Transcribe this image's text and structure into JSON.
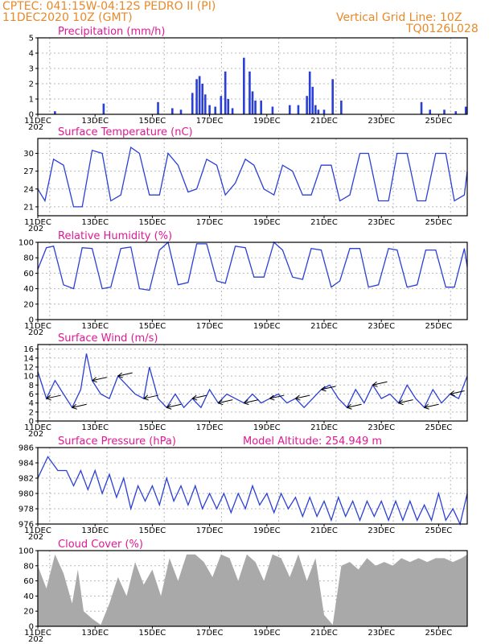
{
  "header": {
    "station": "CPTEC:   041:15W-04:12S   PEDRO II (PI)",
    "date": "11DEC2020 10Z (GMT)",
    "grid_note": "Vertical Grid Line: 10Z",
    "code": "TQ0126L028"
  },
  "colors": {
    "header": "#e8892a",
    "title": "#e01893",
    "line": "#2a3fd6",
    "cloud": "#a9a9a9",
    "arrow": "#000000"
  },
  "x_axis": {
    "start_day": 11,
    "end_day": 26,
    "tick_labels": [
      "11DEC",
      "13DEC",
      "15DEC",
      "17DEC",
      "19DEC",
      "21DEC",
      "23DEC",
      "25DEC"
    ],
    "tick_days": [
      11,
      13,
      15,
      17,
      19,
      21,
      23,
      25
    ],
    "year_fragment": "202"
  },
  "panels": {
    "precip": {
      "title": "Precipitation (mm/h)",
      "ylim": [
        0,
        5
      ],
      "yticks": [
        0,
        1,
        2,
        3,
        4,
        5
      ]
    },
    "temp": {
      "title": "Surface Temperature (nC)",
      "ylim": [
        19.5,
        32.5
      ],
      "yticks": [
        21,
        24,
        27,
        30
      ]
    },
    "rh": {
      "title": "Relative Humidity (%)",
      "ylim": [
        0,
        100
      ],
      "yticks": [
        0,
        20,
        40,
        60,
        80,
        100
      ]
    },
    "wind": {
      "title": "Surface Wind (m/s)",
      "ylim": [
        0,
        17
      ],
      "yticks": [
        0,
        2,
        4,
        6,
        8,
        10,
        12,
        14,
        16
      ]
    },
    "pressure": {
      "title": "Surface Pressure (hPa)",
      "altitude": "Model Altitude: 254.949 m",
      "ylim": [
        976,
        986
      ],
      "yticks": [
        976,
        978,
        980,
        982,
        984,
        986
      ]
    },
    "cloud": {
      "title": "Cloud Cover (%)",
      "ylim": [
        0,
        100
      ],
      "yticks": [
        0,
        20,
        40,
        60,
        80,
        100
      ]
    }
  },
  "chart_data": [
    {
      "type": "bar",
      "title": "Precipitation (mm/h)",
      "ylim": [
        0,
        5
      ],
      "x_unit": "days from 11DEC 00Z",
      "x": [
        0.6,
        2.3,
        4.2,
        4.7,
        5.0,
        5.4,
        5.55,
        5.65,
        5.75,
        5.85,
        6.0,
        6.2,
        6.4,
        6.55,
        6.65,
        6.8,
        7.2,
        7.4,
        7.5,
        7.6,
        7.8,
        8.2,
        8.8,
        9.1,
        9.4,
        9.5,
        9.6,
        9.7,
        9.8,
        10.0,
        10.3,
        10.6,
        13.4,
        13.7,
        14.2,
        14.6,
        14.95
      ],
      "values": [
        0.2,
        0.7,
        0.8,
        0.4,
        0.3,
        1.4,
        2.3,
        2.5,
        2.0,
        1.3,
        0.6,
        0.5,
        1.2,
        2.8,
        1.0,
        0.4,
        3.7,
        2.8,
        1.5,
        0.9,
        0.9,
        0.5,
        0.6,
        0.6,
        1.2,
        2.8,
        1.8,
        0.6,
        0.3,
        0.3,
        2.3,
        0.9,
        0.8,
        0.3,
        0.3,
        0.2,
        0.5
      ]
    },
    {
      "type": "line",
      "title": "Surface Temperature (nC)",
      "ylim": [
        19.5,
        32.5
      ],
      "x_unit": "days from 11DEC 00Z",
      "x": [
        0,
        0.25,
        0.55,
        0.9,
        1.25,
        1.55,
        1.9,
        2.25,
        2.55,
        2.9,
        3.25,
        3.55,
        3.9,
        4.25,
        4.55,
        4.9,
        5.25,
        5.55,
        5.9,
        6.25,
        6.55,
        6.9,
        7.25,
        7.55,
        7.9,
        8.25,
        8.55,
        8.9,
        9.25,
        9.55,
        9.9,
        10.25,
        10.55,
        10.9,
        11.25,
        11.55,
        11.9,
        12.25,
        12.55,
        12.9,
        13.25,
        13.55,
        13.9,
        14.25,
        14.55,
        14.9,
        15
      ],
      "values": [
        24,
        22,
        29,
        28,
        21,
        21,
        30.5,
        30,
        22,
        23,
        31,
        30,
        23,
        23,
        30,
        28,
        23.5,
        24,
        29,
        28,
        23,
        25,
        29,
        28,
        24,
        23,
        28,
        27,
        23,
        23,
        28,
        28,
        22,
        23,
        30,
        30,
        22,
        22,
        30,
        30,
        22,
        22,
        30,
        30,
        22,
        23,
        27
      ]
    },
    {
      "type": "line",
      "title": "Relative Humidity (%)",
      "ylim": [
        0,
        100
      ],
      "x_unit": "days from 11DEC 00Z",
      "x": [
        0,
        0.3,
        0.55,
        0.9,
        1.25,
        1.55,
        1.9,
        2.25,
        2.55,
        2.9,
        3.25,
        3.55,
        3.9,
        4.25,
        4.55,
        4.9,
        5.25,
        5.55,
        5.9,
        6.25,
        6.55,
        6.9,
        7.25,
        7.55,
        7.9,
        8.25,
        8.55,
        8.9,
        9.25,
        9.55,
        9.9,
        10.25,
        10.55,
        10.9,
        11.25,
        11.55,
        11.9,
        12.25,
        12.55,
        12.9,
        13.25,
        13.55,
        13.9,
        14.25,
        14.55,
        14.9,
        15
      ],
      "values": [
        65,
        93,
        95,
        45,
        40,
        93,
        92,
        40,
        42,
        92,
        94,
        40,
        38,
        90,
        100,
        45,
        48,
        98,
        98,
        50,
        47,
        95,
        93,
        55,
        55,
        100,
        90,
        55,
        52,
        92,
        90,
        42,
        50,
        92,
        92,
        42,
        45,
        92,
        90,
        42,
        45,
        90,
        90,
        42,
        42,
        92,
        68
      ]
    },
    {
      "type": "line",
      "title": "Surface Wind (m/s)",
      "ylim": [
        0,
        17
      ],
      "x_unit": "days from 11DEC 00Z",
      "x": [
        0,
        0.3,
        0.6,
        0.9,
        1.2,
        1.5,
        1.7,
        1.9,
        2.2,
        2.5,
        2.8,
        3.1,
        3.4,
        3.7,
        3.9,
        4.2,
        4.5,
        4.8,
        5.1,
        5.4,
        5.7,
        6.0,
        6.3,
        6.6,
        6.9,
        7.2,
        7.5,
        7.8,
        8.1,
        8.4,
        8.7,
        9.0,
        9.3,
        9.6,
        9.9,
        10.2,
        10.5,
        10.8,
        11.1,
        11.4,
        11.7,
        12.0,
        12.3,
        12.6,
        12.9,
        13.2,
        13.5,
        13.8,
        14.1,
        14.4,
        14.7,
        15
      ],
      "values": [
        11,
        5,
        9,
        6,
        3,
        7,
        15,
        9,
        6,
        5,
        10,
        8,
        6,
        5,
        12,
        5,
        3,
        6,
        3,
        5,
        3,
        7,
        4,
        6,
        5,
        4,
        6,
        4,
        5,
        6,
        4,
        5,
        3,
        5,
        7,
        8,
        5,
        3,
        7,
        4,
        8,
        5,
        6,
        4,
        8,
        5,
        3,
        7,
        4,
        6,
        5,
        10
      ]
    },
    {
      "type": "line",
      "title": "Surface Pressure (hPa)",
      "ylim": [
        976,
        986
      ],
      "x_unit": "days from 11DEC 00Z",
      "x": [
        0,
        0.35,
        0.7,
        1.0,
        1.25,
        1.5,
        1.75,
        2.0,
        2.25,
        2.5,
        2.75,
        3.0,
        3.25,
        3.5,
        3.75,
        4.0,
        4.25,
        4.5,
        4.75,
        5.0,
        5.25,
        5.5,
        5.75,
        6.0,
        6.25,
        6.5,
        6.75,
        7.0,
        7.25,
        7.5,
        7.75,
        8.0,
        8.25,
        8.5,
        8.75,
        9.0,
        9.25,
        9.5,
        9.75,
        10.0,
        10.25,
        10.5,
        10.75,
        11.0,
        11.25,
        11.5,
        11.75,
        12.0,
        12.25,
        12.5,
        12.75,
        13.0,
        13.25,
        13.5,
        13.75,
        14.0,
        14.25,
        14.5,
        14.75,
        15
      ],
      "values": [
        982,
        984.8,
        983,
        983,
        981,
        983,
        980.5,
        983,
        980,
        982.5,
        979.5,
        982,
        978,
        981,
        979,
        981,
        978.5,
        982,
        979,
        981,
        978.5,
        981,
        978,
        980,
        978,
        980,
        977.5,
        980,
        978,
        981,
        978.5,
        980,
        977.5,
        980,
        978,
        979.5,
        977,
        979.5,
        977,
        979,
        976.5,
        979.5,
        977,
        979,
        976.5,
        979,
        977,
        979,
        976.5,
        979,
        976.5,
        979,
        976.5,
        978.5,
        976.5,
        980,
        976.5,
        978,
        976,
        980
      ]
    },
    {
      "type": "area",
      "title": "Cloud Cover (%)",
      "ylim": [
        0,
        100
      ],
      "x_unit": "days from 11DEC 00Z",
      "x": [
        0,
        0.3,
        0.6,
        0.9,
        1.2,
        1.4,
        1.6,
        1.9,
        2.2,
        2.5,
        2.8,
        3.1,
        3.4,
        3.7,
        4.0,
        4.3,
        4.6,
        4.9,
        5.2,
        5.5,
        5.8,
        6.1,
        6.4,
        6.7,
        7.0,
        7.3,
        7.6,
        7.9,
        8.2,
        8.5,
        8.8,
        9.1,
        9.4,
        9.7,
        10.0,
        10.3,
        10.6,
        10.9,
        11.2,
        11.5,
        11.8,
        12.1,
        12.4,
        12.7,
        13.0,
        13.3,
        13.6,
        13.9,
        14.2,
        14.5,
        14.8,
        15
      ],
      "values": [
        80,
        50,
        95,
        70,
        30,
        75,
        20,
        10,
        2,
        30,
        65,
        40,
        85,
        55,
        75,
        40,
        90,
        60,
        95,
        95,
        85,
        65,
        95,
        90,
        60,
        95,
        85,
        60,
        95,
        90,
        65,
        95,
        60,
        90,
        15,
        2,
        80,
        85,
        75,
        90,
        80,
        85,
        80,
        90,
        85,
        90,
        85,
        90,
        90,
        85,
        90,
        95
      ]
    }
  ]
}
